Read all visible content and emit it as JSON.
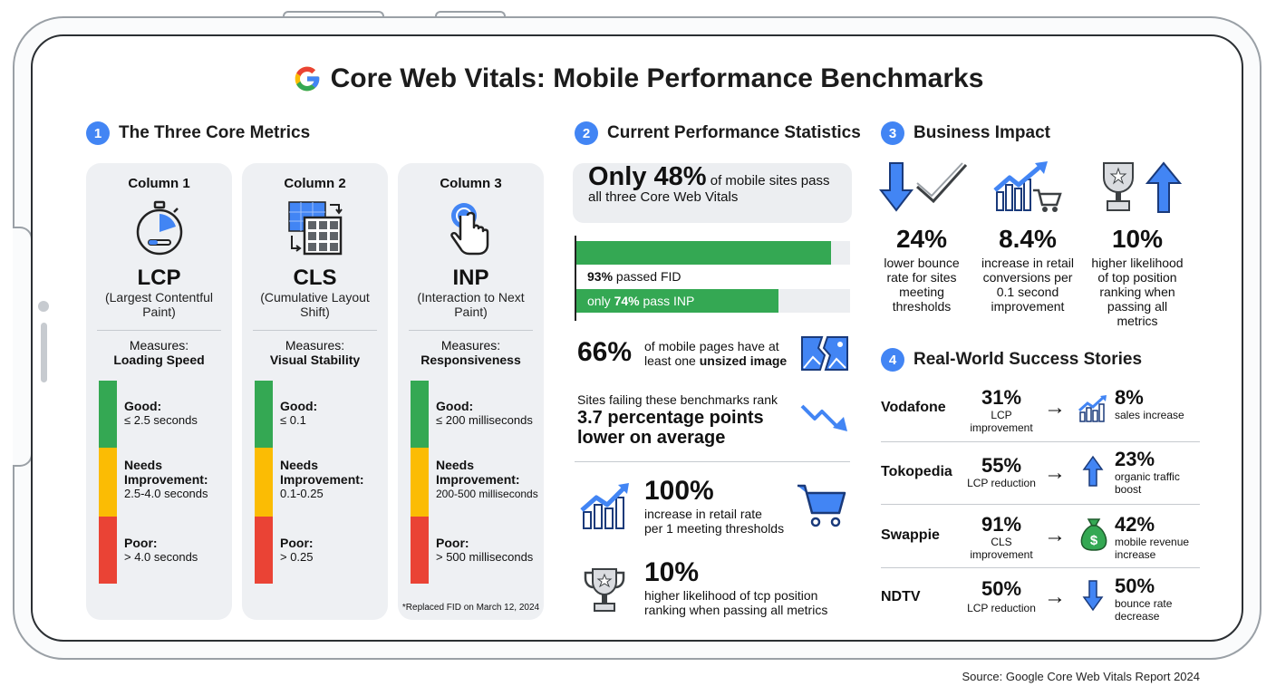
{
  "title": "Core Web Vitals: Mobile Performance Benchmarks",
  "colors": {
    "blue": "#4285f4",
    "green": "#34a853",
    "yellow": "#fbbc04",
    "red": "#ea4335"
  },
  "sections": {
    "s1": {
      "num": "1",
      "title": "The Three Core Metrics"
    },
    "s2": {
      "num": "2",
      "title": "Current Performance Statistics"
    },
    "s3": {
      "num": "3",
      "title": "Business Impact"
    },
    "s4": {
      "num": "4",
      "title": "Real-World Success Stories"
    }
  },
  "metrics": [
    {
      "column": "Column 1",
      "icon": "stopwatch-icon",
      "abbr": "LCP",
      "full": "(Largest Contentful Paint)",
      "measures_label": "Measures:",
      "measures": "Loading Speed",
      "good_label": "Good:",
      "good": "≤ 2.5 seconds",
      "needs_label": "Needs Improvement:",
      "needs": "2.5-4.0 seconds",
      "poor_label": "Poor:",
      "poor": "> 4.0 seconds",
      "note": ""
    },
    {
      "column": "Column 2",
      "icon": "layout-shift-icon",
      "abbr": "CLS",
      "full": "(Cumulative Layout Shift)",
      "measures_label": "Measures:",
      "measures": "Visual Stability",
      "good_label": "Good:",
      "good": "≤ 0.1",
      "needs_label": "Needs Improvement:",
      "needs": "0.1-0.25",
      "poor_label": "Poor:",
      "poor": "> 0.25",
      "note": ""
    },
    {
      "column": "Column 3",
      "icon": "tap-icon",
      "abbr": "INP",
      "full": "(Interaction to Next Paint)",
      "measures_label": "Measures:",
      "measures": "Responsiveness",
      "good_label": "Good:",
      "good": "≤ 200 milliseconds",
      "needs_label": "Needs Improvement:",
      "needs": "200-500 milliseconds",
      "poor_label": "Poor:",
      "poor": "> 500 milliseconds",
      "note": "*Replaced FID on March 12, 2024"
    }
  ],
  "stats": {
    "pass_big": "Only 48%",
    "pass_rest": "of mobile sites pass all three Core Web Vitals",
    "fid_value": "93%",
    "fid_text": "passed FID",
    "fid_fraction": 0.93,
    "inp_prefix": "only",
    "inp_value": "74%",
    "inp_text": "pass INP",
    "inp_fraction": 0.74,
    "unsized_big": "66%",
    "unsized_text": "of mobile pages have at least one",
    "unsized_bold": "unsized image",
    "rank_text": "Sites failing these benchmarks rank",
    "rank_bold1": "3.7 percentage points",
    "rank_bold2": "lower on average",
    "retail_big": "100%",
    "retail_text1": "increase in retail rate",
    "retail_text2": "per 1 meeting thresholds",
    "top_big": "10%",
    "top_text1": "higher likelihood of tcp position",
    "top_text2": "ranking when passing all metrics"
  },
  "impact": [
    {
      "icon": "bounce-down-icon",
      "value": "24%",
      "text": "lower bounce rate for sites meeting thresholds"
    },
    {
      "icon": "chart-cart-icon",
      "value": "8.4%",
      "text": "increase in retail conversions per 0.1 second improvement"
    },
    {
      "icon": "trophy-up-icon",
      "value": "10%",
      "text": "higher likelihood of top position ranking when passing all metrics"
    }
  ],
  "stories": [
    {
      "company": "Vodafone",
      "metric_value": "31%",
      "metric_label": "LCP improvement",
      "icon": "growth-chart-icon",
      "result_value": "8%",
      "result_label": "sales increase"
    },
    {
      "company": "Tokopedia",
      "metric_value": "55%",
      "metric_label": "LCP reduction",
      "icon": "arrow-up-icon",
      "result_value": "23%",
      "result_label": "organic traffic boost"
    },
    {
      "company": "Swappie",
      "metric_value": "91%",
      "metric_label": "CLS improvement",
      "icon": "money-bag-icon",
      "result_value": "42%",
      "result_label": "mobile revenue increase"
    },
    {
      "company": "NDTV",
      "metric_value": "50%",
      "metric_label": "LCP reduction",
      "icon": "arrow-down-icon",
      "result_value": "50%",
      "result_label": "bounce rate decrease"
    }
  ],
  "source": "Source: Google Core Web Vitals Report 2024"
}
